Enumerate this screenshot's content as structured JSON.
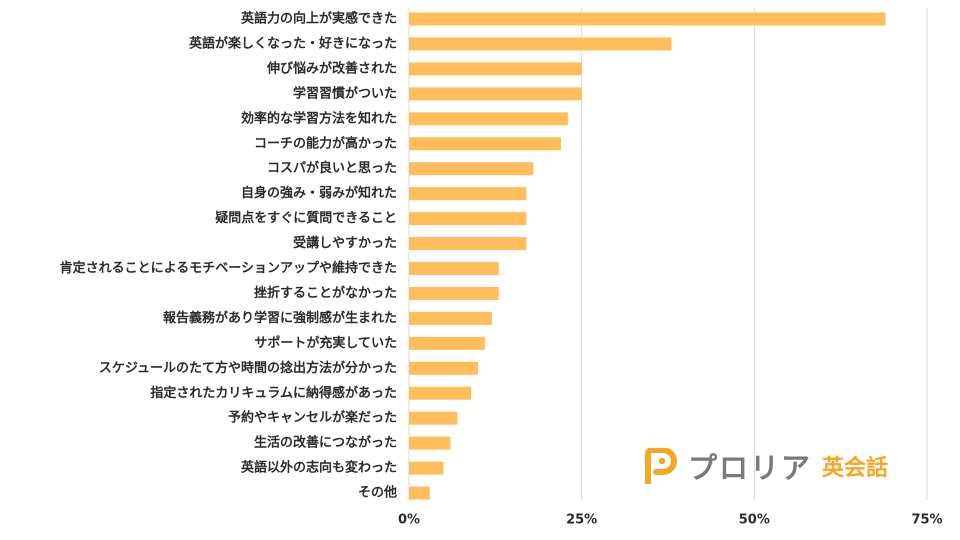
{
  "chart_data": {
    "type": "bar",
    "orientation": "horizontal",
    "categories": [
      "英語力の向上が実感できた",
      "英語が楽しくなった・好きになった",
      "伸び悩みが改善された",
      "学習習慣がついた",
      "効率的な学習方法を知れた",
      "コーチの能力が高かった",
      "コスパが良いと思った",
      "自身の強み・弱みが知れた",
      "疑問点をすぐに質問できること",
      "受講しやすかった",
      "肯定されることによるモチベーションアップや維持できた",
      "挫折することがなかった",
      "報告義務があり学習に強制感が生まれた",
      "サポートが充実していた",
      "スケジュールのたて方や時間の捻出方法が分かった",
      "指定されたカリキュラムに納得感があった",
      "予約やキャンセルが楽だった",
      "生活の改善につながった",
      "英語以外の志向も変わった",
      "その他"
    ],
    "values": [
      69,
      38,
      25,
      25,
      23,
      22,
      18,
      17,
      17,
      17,
      13,
      13,
      12,
      11,
      10,
      9,
      7,
      6,
      5,
      3
    ],
    "xlim": [
      0,
      75
    ],
    "xticks": [
      0,
      25,
      50,
      75
    ],
    "xtick_labels": [
      "0%",
      "25%",
      "50%",
      "75%"
    ],
    "grid": true,
    "legend": "none",
    "title": "",
    "xlabel": "",
    "ylabel": ""
  },
  "colors": {
    "bar": "#ffbd5c",
    "grid": "#d9d9d9",
    "text": "#2b2b2b",
    "logo_text": "#7a7a7a",
    "logo_accent": "#f5a623"
  },
  "logo": {
    "name": "プロリア",
    "sub": "英会話",
    "icon": "p-logo-icon"
  }
}
